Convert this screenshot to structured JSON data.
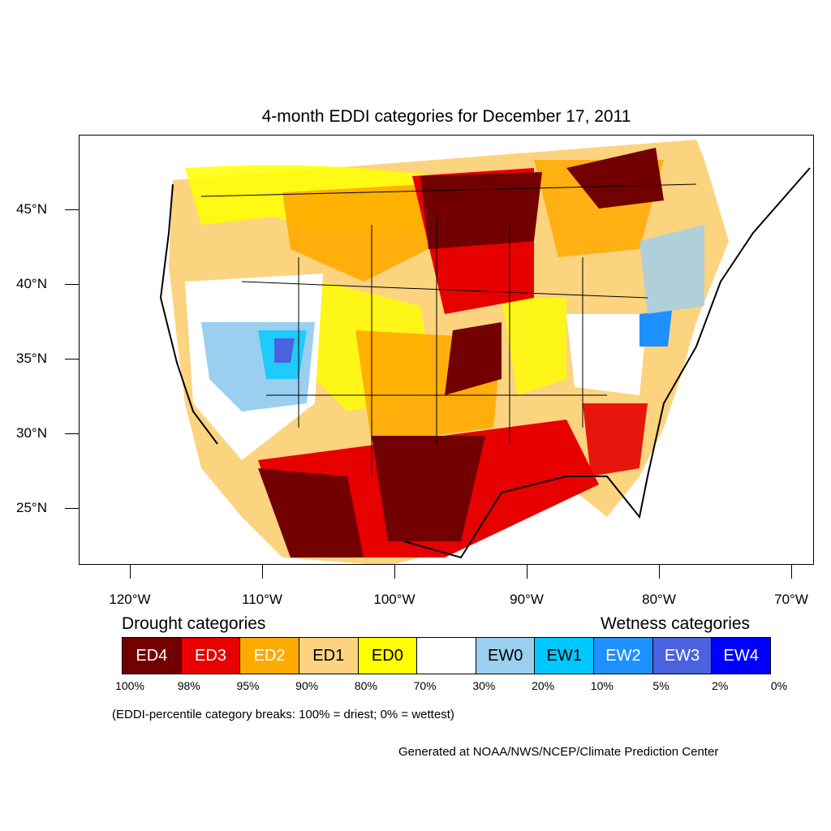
{
  "title": "4-month EDDI categories for December 17, 2011",
  "map": {
    "latitude_labels": [
      "45°N",
      "40°N",
      "35°N",
      "30°N",
      "25°N"
    ],
    "longitude_labels": [
      "120°W",
      "110°W",
      "100°W",
      "90°W",
      "80°W",
      "70°W"
    ]
  },
  "legend": {
    "drought_heading": "Drought categories",
    "wetness_heading": "Wetness categories",
    "categories": [
      {
        "label": "ED4",
        "color": "#730000",
        "text_color": "#ffffff"
      },
      {
        "label": "ED3",
        "color": "#e60000",
        "text_color": "#ffffff"
      },
      {
        "label": "ED2",
        "color": "#ffaa00",
        "text_color": "#ffffff"
      },
      {
        "label": "ED1",
        "color": "#fcd37f",
        "text_color": "#000000"
      },
      {
        "label": "ED0",
        "color": "#ffff00",
        "text_color": "#000000"
      },
      {
        "label": "",
        "color": "#ffffff",
        "text_color": "#000000"
      },
      {
        "label": "EW0",
        "color": "#9bcfef",
        "text_color": "#000000"
      },
      {
        "label": "EW1",
        "color": "#00c8ff",
        "text_color": "#000000"
      },
      {
        "label": "EW2",
        "color": "#1e90ff",
        "text_color": "#ffffff"
      },
      {
        "label": "EW3",
        "color": "#4a62e0",
        "text_color": "#ffffff"
      },
      {
        "label": "EW4",
        "color": "#0000ff",
        "text_color": "#ffffff"
      }
    ],
    "percentiles": [
      "100%",
      "98%",
      "95%",
      "90%",
      "80%",
      "70%",
      "30%",
      "20%",
      "10%",
      "5%",
      "2%",
      "0%"
    ]
  },
  "note": "(EDDI-percentile category breaks: 100% = driest; 0% = wettest)",
  "credit": "Generated at NOAA/NWS/NCEP/Climate Prediction Center"
}
